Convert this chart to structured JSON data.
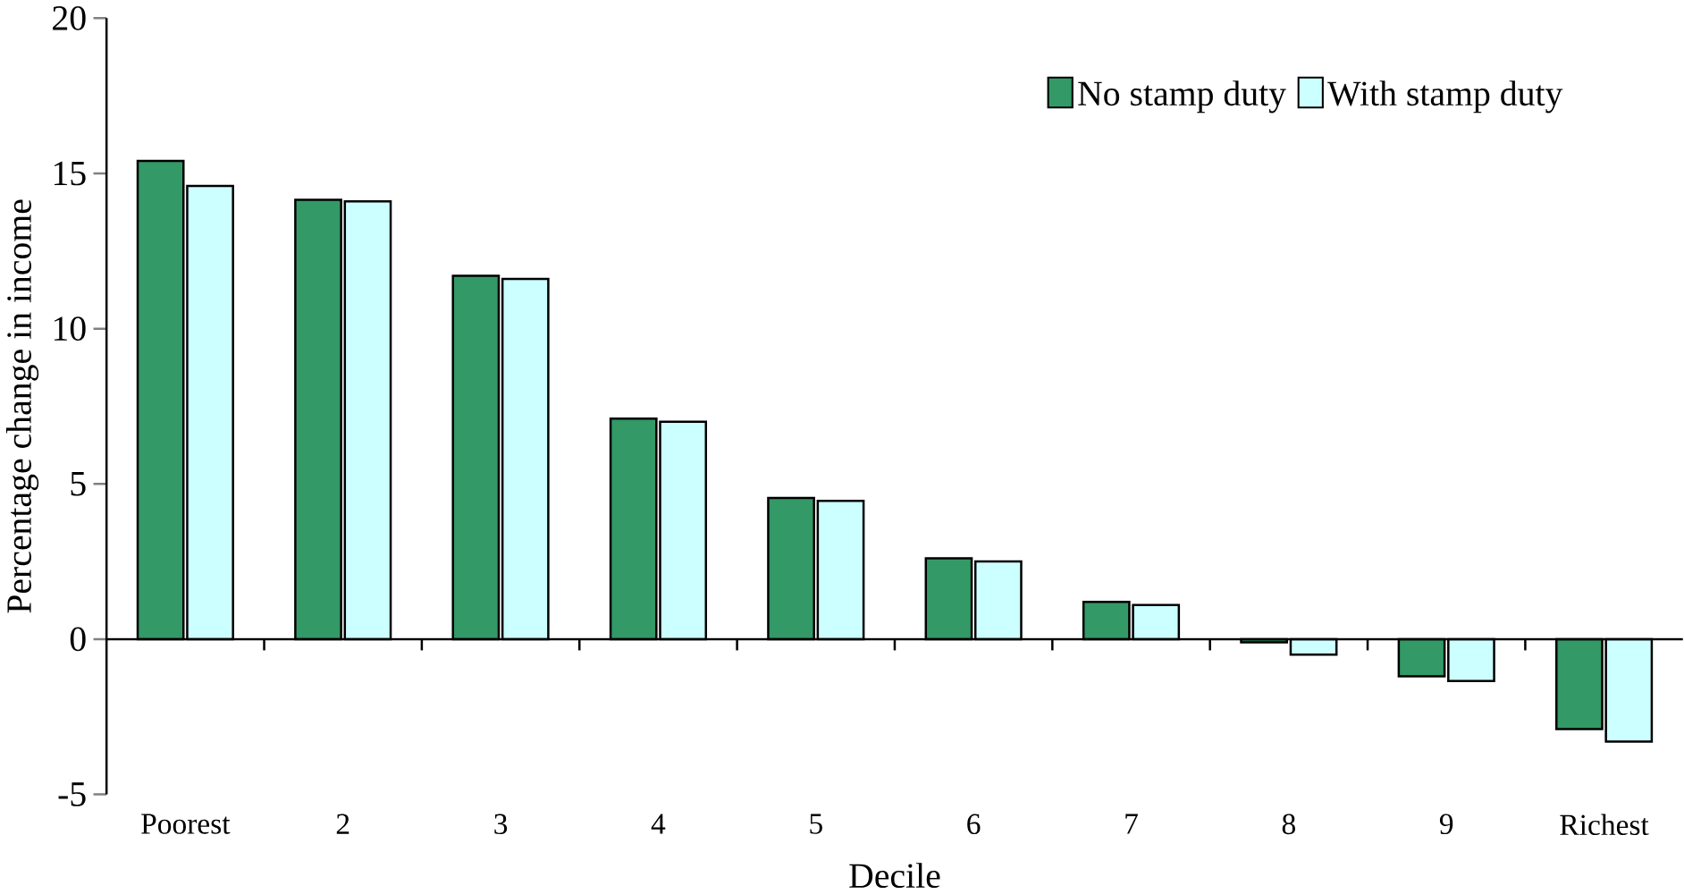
{
  "chart_data": {
    "type": "bar",
    "xlabel": "Decile",
    "ylabel": "Percentage change in income",
    "categories": [
      "Poorest",
      "2",
      "3",
      "4",
      "5",
      "6",
      "7",
      "8",
      "9",
      "Richest"
    ],
    "series": [
      {
        "name": "No stamp duty",
        "color": "#339966",
        "values": [
          15.4,
          14.15,
          11.7,
          7.1,
          4.55,
          2.6,
          1.2,
          -0.1,
          -1.2,
          -2.9
        ]
      },
      {
        "name": "With stamp duty",
        "color": "#ccffff",
        "values": [
          14.6,
          14.1,
          11.6,
          7.0,
          4.45,
          2.5,
          1.1,
          -0.5,
          -1.35,
          -3.3
        ]
      }
    ],
    "ylim": [
      -5,
      20
    ],
    "yticks": [
      -5,
      0,
      5,
      10,
      15,
      20
    ],
    "legend": "top right"
  }
}
